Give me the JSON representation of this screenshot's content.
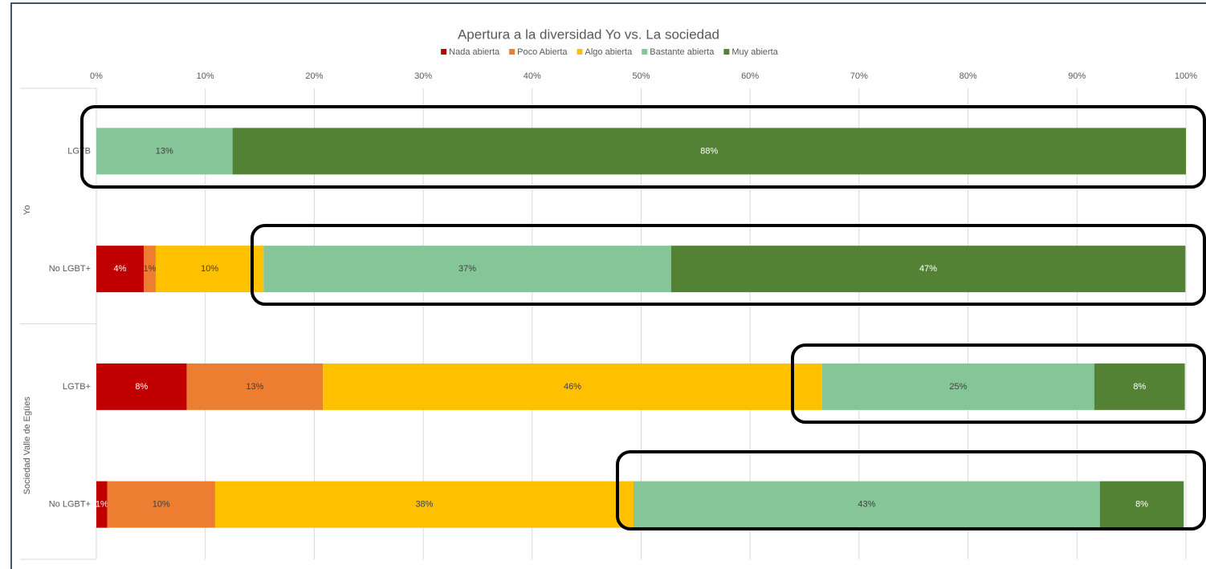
{
  "chart_data": {
    "type": "stacked-bar-horizontal",
    "title": "Apertura a la diversidad Yo vs. La sociedad",
    "groups": [
      {
        "name": "Yo",
        "categories": [
          0,
          1
        ]
      },
      {
        "name": "Sociedad Valle de Egües",
        "categories": [
          2,
          3
        ]
      }
    ],
    "categories": [
      "LGTB",
      "No LGBT+",
      "LGTB+",
      "No LGBT+"
    ],
    "series": [
      {
        "name": "Nada abierta",
        "color": "#c00000",
        "values": [
          null,
          4.35,
          8.3,
          1.0
        ],
        "value_labels": [
          null,
          "4%",
          "8%",
          "1%"
        ]
      },
      {
        "name": "Poco Abierta",
        "color": "#ed7d31",
        "values": [
          null,
          1.1,
          12.5,
          9.9
        ],
        "value_labels": [
          null,
          "1%",
          "13%",
          "10%"
        ]
      },
      {
        "name": "Algo abierta",
        "color": "#ffc000",
        "values": [
          null,
          9.9,
          45.8,
          38.4
        ],
        "value_labels": [
          null,
          "10%",
          "46%",
          "38%"
        ]
      },
      {
        "name": "Bastante abierta",
        "color": "#85c598",
        "values": [
          12.5,
          37.4,
          25.0,
          42.8
        ],
        "value_labels": [
          "13%",
          "37%",
          "25%",
          "43%"
        ]
      },
      {
        "name": "Muy abierta",
        "color": "#548235",
        "values": [
          87.5,
          47.2,
          8.3,
          7.7
        ],
        "value_labels": [
          "88%",
          "47%",
          "8%",
          "8%"
        ]
      }
    ],
    "xlim": [
      0,
      100
    ],
    "xticks": [
      {
        "value": 0,
        "label": "0%"
      },
      {
        "value": 10,
        "label": "10%"
      },
      {
        "value": 20,
        "label": "20%"
      },
      {
        "value": 30,
        "label": "30%"
      },
      {
        "value": 40,
        "label": "40%"
      },
      {
        "value": 50,
        "label": "50%"
      },
      {
        "value": 60,
        "label": "60%"
      },
      {
        "value": 70,
        "label": "70%"
      },
      {
        "value": 80,
        "label": "80%"
      },
      {
        "value": 90,
        "label": "90%"
      },
      {
        "value": 100,
        "label": "100%"
      }
    ],
    "grid": true,
    "legend": "top"
  }
}
